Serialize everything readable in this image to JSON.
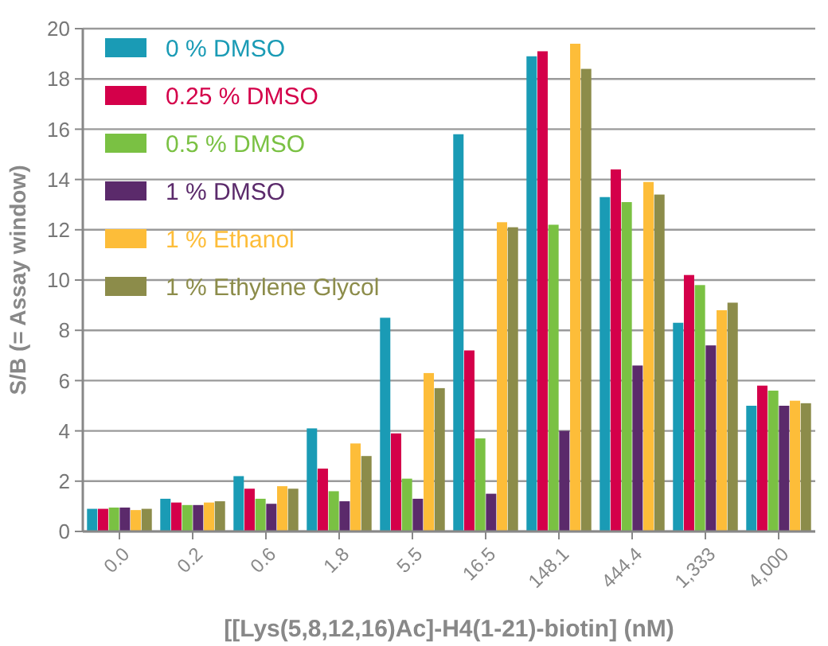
{
  "chart_data": {
    "type": "bar",
    "xlabel": "[[Lys(5,8,12,16)Ac]-H4(1-21)-biotin] (nM)",
    "ylabel": "S/B (= Assay window)",
    "categories": [
      "0.0",
      "0.2",
      "0.6",
      "1.8",
      "5.5",
      "16.5",
      "148.1",
      "444.4",
      "1,333",
      "4,000"
    ],
    "ylim": [
      0,
      20
    ],
    "yticks": [
      0,
      2,
      4,
      6,
      8,
      10,
      12,
      14,
      16,
      18,
      20
    ],
    "grid": "y",
    "legend": "top left",
    "series": [
      {
        "name": "0 % DMSO",
        "color": "#1a9bb5",
        "values": [
          0.9,
          1.3,
          2.2,
          4.1,
          8.5,
          15.8,
          18.9,
          13.3,
          8.3,
          5.0
        ]
      },
      {
        "name": "0.25 % DMSO",
        "color": "#d4004a",
        "values": [
          0.9,
          1.15,
          1.7,
          2.5,
          3.9,
          7.2,
          19.1,
          14.4,
          10.2,
          5.8
        ]
      },
      {
        "name": "0.5 % DMSO",
        "color": "#7ac143",
        "values": [
          0.95,
          1.05,
          1.3,
          1.6,
          2.1,
          3.7,
          12.2,
          13.1,
          9.8,
          5.6
        ]
      },
      {
        "name": "1 % DMSO",
        "color": "#5b2a6b",
        "values": [
          0.95,
          1.05,
          1.1,
          1.2,
          1.3,
          1.5,
          4.0,
          6.6,
          7.4,
          5.0
        ]
      },
      {
        "name": "1 % Ethanol",
        "color": "#fdbd39",
        "values": [
          0.85,
          1.15,
          1.8,
          3.5,
          6.3,
          12.3,
          19.4,
          13.9,
          8.8,
          5.2
        ]
      },
      {
        "name": "1 % Ethylene Glycol",
        "color": "#8c8c4a",
        "values": [
          0.9,
          1.2,
          1.7,
          3.0,
          5.7,
          12.1,
          18.4,
          13.4,
          9.1,
          5.1
        ]
      }
    ]
  }
}
